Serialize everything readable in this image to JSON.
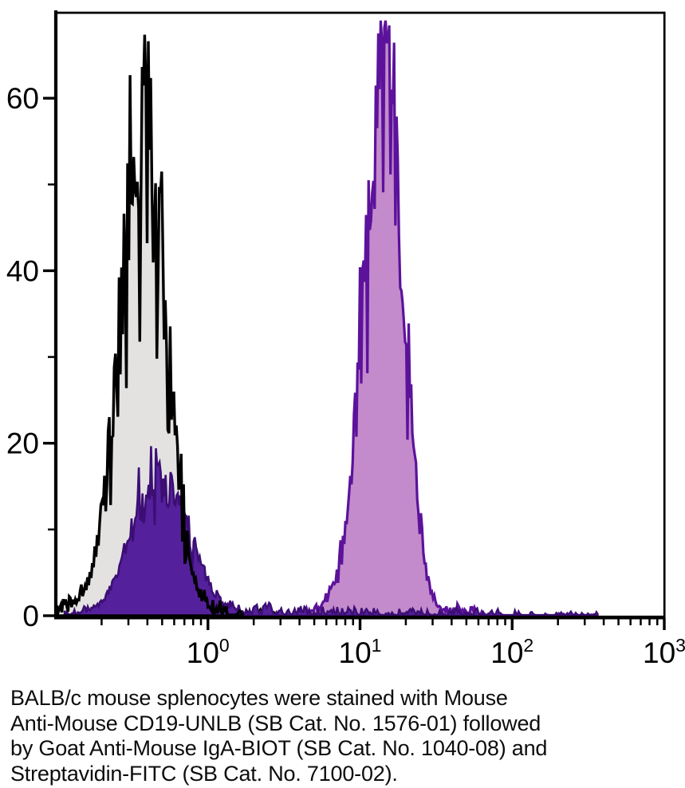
{
  "figure": {
    "caption": {
      "lines": [
        "BALB/c mouse splenocytes were stained with Mouse",
        "Anti-Mouse CD19-UNLB (SB Cat. No. 1576-01) followed",
        "by Goat Anti-Mouse IgA-BIOT (SB Cat. No. 1040-08) and",
        "Streptavidin-FITC (SB Cat. No. 7100-02)."
      ]
    }
  },
  "chart_data": {
    "type": "area",
    "subtype": "flow-cytometry-histogram-overlay",
    "title": "",
    "xlabel": "",
    "ylabel": "",
    "grid": false,
    "legend": "none",
    "axis_color": "#000000",
    "x_axis": {
      "scale": "log10",
      "min": 0.1,
      "max": 1000,
      "major_ticks": [
        {
          "value": 1,
          "base": "10",
          "exponent": "0"
        },
        {
          "value": 10,
          "base": "10",
          "exponent": "1"
        },
        {
          "value": 100,
          "base": "10",
          "exponent": "2"
        },
        {
          "value": 1000,
          "base": "10",
          "exponent": "3"
        }
      ],
      "minor_tick_multipliers": [
        2,
        3,
        4,
        5,
        6,
        7,
        8,
        9
      ]
    },
    "y_axis": {
      "min": 0,
      "max": 70,
      "major_ticks": [
        0,
        20,
        40,
        60
      ],
      "minor_ticks": [
        10,
        30,
        50
      ]
    },
    "series": [
      {
        "name": "unstained-control",
        "description": "autofluorescence control, black outline with light gray fill",
        "outline_color": "#000000",
        "fill_color": "#e3e2e1",
        "outline_width": 3.4,
        "peak_x": 0.39,
        "peak_log10_x": -0.41,
        "sigma_left": 0.165,
        "sigma_right": 0.14,
        "peak_height": 62,
        "floor_noise": 1.8,
        "seed": 11,
        "tail": {
          "from_log10": 0.14,
          "to_log10": 0.68,
          "level_start": 1.1,
          "level_end": 0.3,
          "density_start": 0.5,
          "density_end": 0.3
        }
      },
      {
        "name": "negative-population",
        "description": "CD19-negative / background population, dark violet filled",
        "outline_color": "#3c0e74",
        "fill_color": "#55209c",
        "outline_width": 2.6,
        "peak_x": 0.47,
        "peak_log10_x": -0.33,
        "sigma_left": 0.17,
        "sigma_right": 0.2,
        "peak_height": 17.5,
        "floor_noise": 0.8,
        "seed": 7,
        "tail": {
          "from_log10": 0.24,
          "to_log10": 2.57,
          "level_start": 1.5,
          "level_end": 0.55,
          "density_start": 0.55,
          "density_end": 0.28
        }
      },
      {
        "name": "cd19-positive-stained",
        "description": "CD19-positive stained population, purple outline with light orchid fill",
        "outline_color": "#5c129b",
        "fill_color": "#c38bcb",
        "outline_width": 3.2,
        "peak_x": 15,
        "peak_log10_x": 1.18,
        "sigma_left": 0.15,
        "sigma_right": 0.115,
        "peak_height": 66.5,
        "floor_noise": 0.9,
        "seed": 23,
        "tail": {
          "from_log10": 1.6,
          "to_log10": 1.82,
          "level_start": 2.2,
          "level_end": 0.4,
          "density_start": 0.7,
          "density_end": 0.5
        }
      }
    ]
  }
}
